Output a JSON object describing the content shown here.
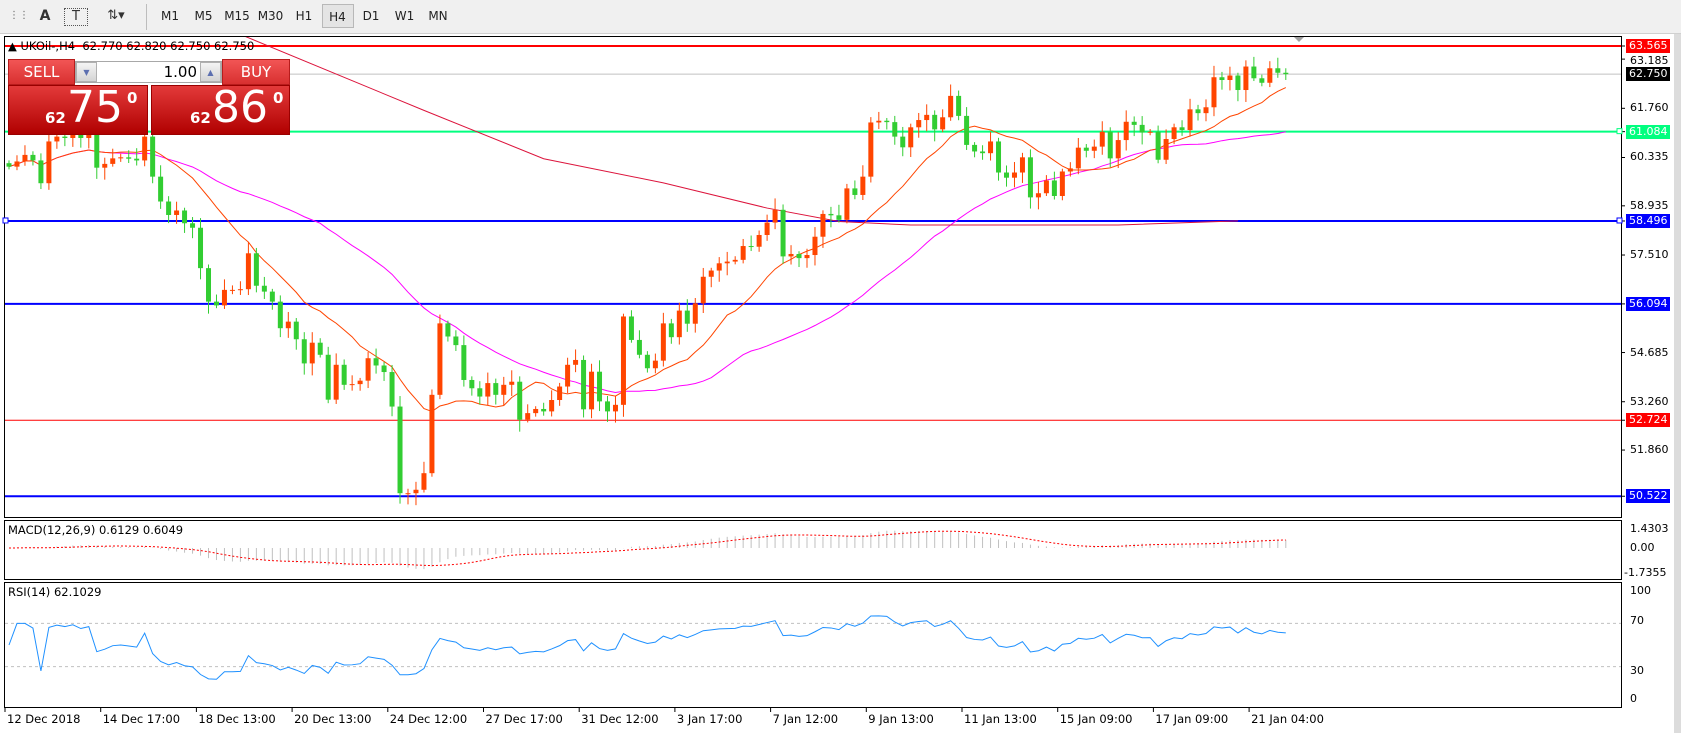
{
  "toolbar": {
    "tools": [
      {
        "icon": "period-separators-icon",
        "glyph": "⋮⋮"
      },
      {
        "icon": "text-icon",
        "glyph": "A"
      },
      {
        "icon": "text-label-icon",
        "glyph": "T"
      },
      {
        "icon": "arrows-dropdown-icon",
        "glyph": "⇅▾"
      }
    ],
    "timeframes": [
      "M1",
      "M5",
      "M15",
      "M30",
      "H1",
      "H4",
      "D1",
      "W1",
      "MN"
    ],
    "active_timeframe": "H4"
  },
  "chart": {
    "symbol_line": "UKOil-,H4  62.770 62.820 62.750 62.750",
    "trade_panel": {
      "sell_label": "SELL",
      "buy_label": "BUY",
      "lot": "1.00",
      "sell_price": {
        "prefix": "62",
        "big": "75",
        "sup": "0"
      },
      "buy_price": {
        "prefix": "62",
        "big": "86",
        "sup": "0"
      }
    },
    "price_axis": [
      "63.185",
      "61.760",
      "60.335",
      "58.935",
      "57.510",
      "54.685",
      "53.260",
      "51.860"
    ],
    "horizontal_lines": [
      {
        "label": "63.565",
        "value": 63.565,
        "color": "#ff0000"
      },
      {
        "label": "61.084",
        "value": 61.084,
        "color": "#00ff7f"
      },
      {
        "label": "58.496",
        "value": 58.496,
        "color": "#0000ff"
      },
      {
        "label": "56.094",
        "value": 56.094,
        "color": "#0000ff"
      },
      {
        "label": "52.724",
        "value": 52.724,
        "color": "#ff0000"
      },
      {
        "label": "50.522",
        "value": 50.522,
        "color": "#0000ff"
      }
    ],
    "current_price": {
      "label": "62.750",
      "value": 62.75
    },
    "colors": {
      "bull": "#ff4500",
      "bear": "#32cd32",
      "ma_fast": "#ff4500",
      "ma_slow": "#ff00ff",
      "ma_long": "#dc143c",
      "rsi": "#1e90ff",
      "macd_hist": "#c0c0c0",
      "macd_signal": "#ff0000"
    },
    "dates": [
      "12 Dec 2018",
      "14 Dec 17:00",
      "18 Dec 13:00",
      "20 Dec 13:00",
      "24 Dec 12:00",
      "27 Dec 17:00",
      "31 Dec 12:00",
      "3 Jan 17:00",
      "7 Jan 12:00",
      "9 Jan 13:00",
      "11 Jan 13:00",
      "15 Jan 09:00",
      "17 Jan 09:00",
      "21 Jan 04:00"
    ]
  },
  "macd": {
    "label": "MACD(12,26,9) 0.6129 0.6049",
    "axis": [
      "1.4303",
      "0.00",
      "-1.7355"
    ]
  },
  "rsi": {
    "label": "RSI(14) 62.1029",
    "axis": [
      "100",
      "70",
      "30",
      "0"
    ]
  },
  "chart_data": {
    "type": "candlestick",
    "bars_per_date_label": 12,
    "close": [
      60.07,
      60.22,
      60.41,
      60.25,
      59.59,
      60.8,
      60.94,
      60.9,
      61.0,
      60.9,
      61.0,
      60.04,
      60.15,
      60.31,
      60.34,
      60.3,
      60.25,
      60.94,
      59.78,
      59.06,
      58.67,
      58.8,
      58.43,
      58.3,
      57.13,
      56.16,
      56.05,
      56.5,
      56.5,
      56.52,
      57.56,
      56.62,
      56.45,
      56.16,
      55.39,
      55.58,
      55.07,
      54.37,
      54.97,
      54.62,
      53.32,
      54.33,
      53.75,
      53.77,
      53.87,
      54.52,
      54.31,
      54.12,
      53.12,
      50.61,
      50.61,
      50.71,
      51.19,
      53.46,
      55.53,
      55.15,
      54.9,
      53.89,
      53.65,
      53.41,
      53.8,
      53.46,
      53.75,
      53.84,
      52.74,
      52.93,
      53.05,
      52.98,
      53.31,
      53.7,
      54.33,
      54.47,
      53.04,
      54.13,
      53.27,
      52.98,
      53.17,
      55.73,
      55.05,
      54.62,
      54.23,
      54.45,
      55.53,
      55.13,
      55.9,
      55.52,
      56.11,
      56.88,
      57.06,
      57.27,
      57.32,
      57.37,
      57.77,
      57.75,
      58.09,
      58.45,
      58.82,
      57.47,
      57.54,
      57.42,
      57.51,
      58.04,
      58.7,
      58.66,
      58.53,
      59.44,
      59.25,
      59.78,
      61.35,
      61.4,
      61.36,
      60.94,
      60.63,
      61.21,
      61.42,
      61.57,
      61.15,
      61.5,
      62.12,
      61.54,
      60.7,
      60.51,
      60.46,
      60.8,
      59.9,
      59.75,
      59.9,
      60.34,
      59.18,
      59.3,
      59.67,
      59.22,
      59.93,
      60.02,
      60.62,
      60.53,
      60.65,
      61.08,
      60.31,
      60.84,
      61.37,
      61.28,
      61.06,
      61.08,
      60.27,
      60.87,
      61.21,
      61.13,
      61.73,
      61.62,
      61.79,
      62.66,
      62.58,
      62.71,
      62.29,
      62.97,
      62.63,
      62.5,
      62.92,
      62.79,
      62.75
    ],
    "ma_long": [
      [
        29,
        63.9
      ],
      [
        52,
        61.7
      ],
      [
        67,
        60.3
      ],
      [
        82,
        59.6
      ],
      [
        95,
        58.87
      ],
      [
        104,
        58.48
      ],
      [
        113,
        58.38
      ],
      [
        139,
        58.38
      ],
      [
        154,
        58.5
      ]
    ],
    "ylim": [
      50.3,
      63.75
    ]
  }
}
